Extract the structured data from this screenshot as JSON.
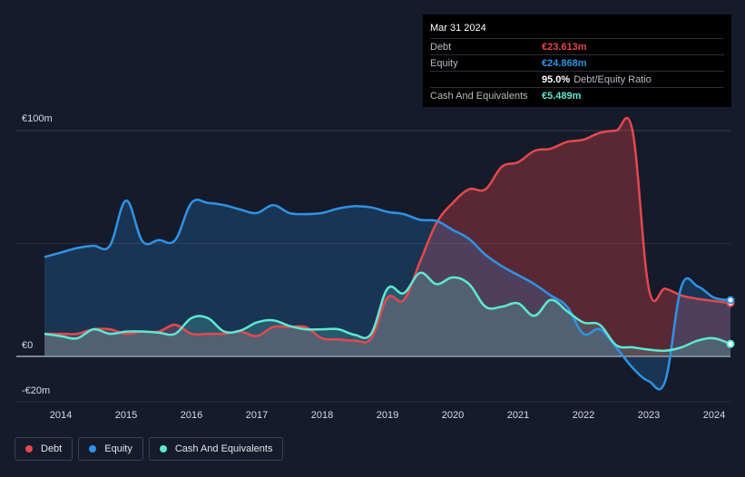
{
  "tooltip": {
    "date": "Mar 31 2024",
    "rows": [
      {
        "label": "Debt",
        "value": "€23.613m",
        "color": "#e5484d"
      },
      {
        "label": "Equity",
        "value": "€24.868m",
        "color": "#2e93e6"
      },
      {
        "label": "",
        "value": "95.0%",
        "sub": "Debt/Equity Ratio",
        "color": "#ffffff"
      },
      {
        "label": "Cash And Equivalents",
        "value": "€5.489m",
        "color": "#5ee8d2"
      }
    ]
  },
  "legend": [
    {
      "label": "Debt",
      "color": "#e5484d"
    },
    {
      "label": "Equity",
      "color": "#2e93e6"
    },
    {
      "label": "Cash And Equivalents",
      "color": "#5ee8d2"
    }
  ],
  "chart_data": {
    "type": "area",
    "title": "",
    "xlabel": "",
    "ylabel": "",
    "unit": "€m",
    "x_ticks": [
      "2014",
      "2015",
      "2016",
      "2017",
      "2018",
      "2019",
      "2020",
      "2021",
      "2022",
      "2023",
      "2024"
    ],
    "y_ticks": [
      "€100m",
      "€0",
      "-€20m"
    ],
    "ylim": [
      -20,
      100
    ],
    "xlim": [
      2013.0,
      2024.25
    ],
    "grid": true,
    "series": [
      {
        "name": "Debt",
        "color": "#e5484d",
        "x": [
          2013.75,
          2014.0,
          2014.25,
          2014.5,
          2014.75,
          2015.0,
          2015.25,
          2015.5,
          2015.75,
          2016.0,
          2016.25,
          2016.5,
          2016.75,
          2017.0,
          2017.25,
          2017.5,
          2017.75,
          2018.0,
          2018.25,
          2018.5,
          2018.75,
          2019.0,
          2019.25,
          2019.5,
          2019.75,
          2020.0,
          2020.25,
          2020.5,
          2020.75,
          2021.0,
          2021.25,
          2021.5,
          2021.75,
          2022.0,
          2022.25,
          2022.5,
          2022.75,
          2023.0,
          2023.25,
          2023.5,
          2023.75,
          2024.0,
          2024.25
        ],
        "values": [
          10,
          10,
          10,
          12,
          12,
          10,
          11,
          11,
          14,
          10,
          10,
          10,
          11,
          9,
          13,
          13,
          13,
          8,
          7.5,
          7,
          8,
          26,
          25,
          42,
          59,
          68,
          74,
          74,
          84,
          86,
          91,
          92,
          95,
          96,
          99,
          100,
          100,
          30,
          30,
          27,
          25.5,
          24.5,
          23.6
        ]
      },
      {
        "name": "Equity",
        "color": "#2e93e6",
        "x": [
          2013.75,
          2014.0,
          2014.25,
          2014.5,
          2014.75,
          2015.0,
          2015.25,
          2015.5,
          2015.75,
          2016.0,
          2016.25,
          2016.5,
          2016.75,
          2017.0,
          2017.25,
          2017.5,
          2017.75,
          2018.0,
          2018.25,
          2018.5,
          2018.75,
          2019.0,
          2019.25,
          2019.5,
          2019.75,
          2020.0,
          2020.25,
          2020.5,
          2020.75,
          2021.0,
          2021.25,
          2021.5,
          2021.75,
          2022.0,
          2022.25,
          2022.5,
          2022.75,
          2023.0,
          2023.25,
          2023.5,
          2023.75,
          2024.0,
          2024.25
        ],
        "values": [
          44,
          46,
          48,
          49,
          49,
          69,
          51,
          51.5,
          51.5,
          68,
          68,
          67,
          65,
          63.5,
          67,
          63.5,
          63,
          63.5,
          65.5,
          66.5,
          66,
          64,
          63,
          60.5,
          60,
          56,
          52,
          45,
          40,
          36,
          32,
          27,
          22,
          10,
          12,
          4,
          -5,
          -11,
          -11,
          31,
          31,
          26,
          24.9
        ]
      },
      {
        "name": "Cash And Equivalents",
        "color": "#5ee8d2",
        "x": [
          2013.75,
          2014.0,
          2014.25,
          2014.5,
          2014.75,
          2015.0,
          2015.25,
          2015.5,
          2015.75,
          2016.0,
          2016.25,
          2016.5,
          2016.75,
          2017.0,
          2017.25,
          2017.5,
          2017.75,
          2018.0,
          2018.25,
          2018.5,
          2018.75,
          2019.0,
          2019.25,
          2019.5,
          2019.75,
          2020.0,
          2020.25,
          2020.5,
          2020.75,
          2021.0,
          2021.25,
          2021.5,
          2021.75,
          2022.0,
          2022.25,
          2022.5,
          2022.75,
          2023.0,
          2023.25,
          2023.5,
          2023.75,
          2024.0,
          2024.25
        ],
        "values": [
          10,
          9,
          8,
          12,
          10,
          11,
          11,
          10.5,
          10,
          17,
          17,
          11,
          11.5,
          15,
          16,
          13.5,
          12,
          12,
          12,
          9.5,
          10,
          30,
          28,
          37,
          32,
          35,
          32,
          22,
          22,
          23.5,
          18,
          25,
          20,
          15,
          14,
          5,
          4,
          3,
          2.5,
          4,
          7,
          8,
          5.5
        ]
      }
    ]
  }
}
